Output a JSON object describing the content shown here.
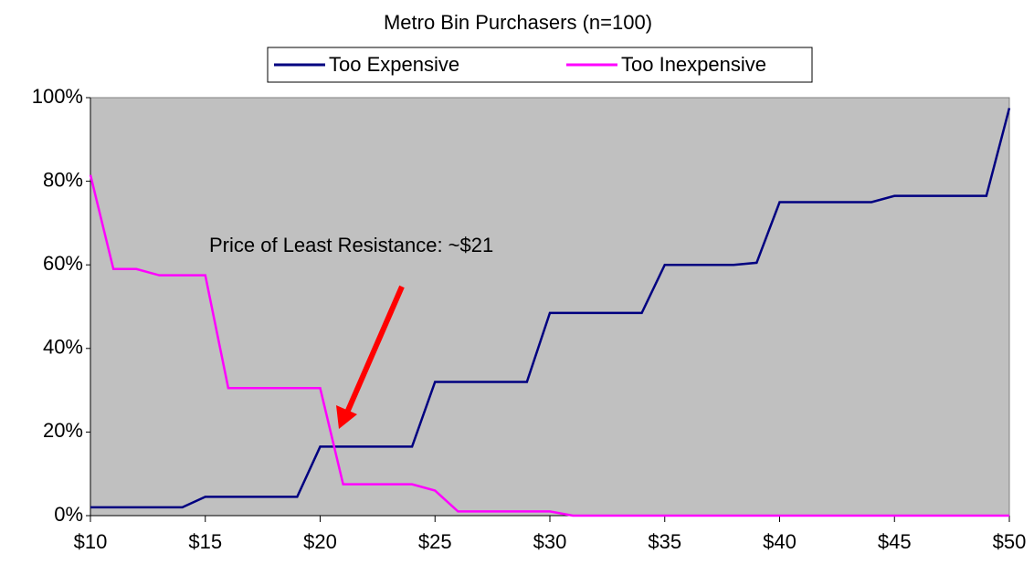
{
  "chart_data": {
    "type": "line",
    "title": "Metro Bin Purchasers (n=100)",
    "annotation": "Price of Least Resistance: ~$21",
    "x": [
      10,
      11,
      12,
      13,
      14,
      15,
      16,
      17,
      18,
      19,
      20,
      21,
      22,
      23,
      24,
      25,
      26,
      27,
      28,
      29,
      30,
      31,
      32,
      33,
      34,
      35,
      36,
      37,
      38,
      39,
      40,
      41,
      42,
      43,
      44,
      45,
      46,
      47,
      48,
      49,
      50
    ],
    "series": [
      {
        "name": "Too Expensive",
        "color": "#000080",
        "values": [
          2,
          2,
          2,
          2,
          2,
          4.5,
          4.5,
          4.5,
          4.5,
          4.5,
          16.5,
          16.5,
          16.5,
          16.5,
          16.5,
          32,
          32,
          32,
          32,
          32,
          48.5,
          48.5,
          48.5,
          48.5,
          48.5,
          60,
          60,
          60,
          60,
          60.5,
          75,
          75,
          75,
          75,
          75,
          76.5,
          76.5,
          76.5,
          76.5,
          76.5,
          97.5
        ]
      },
      {
        "name": "Too Inexpensive",
        "color": "#ff00ff",
        "values": [
          81.5,
          59,
          59,
          57.5,
          57.5,
          57.5,
          30.5,
          30.5,
          30.5,
          30.5,
          30.5,
          7.5,
          7.5,
          7.5,
          7.5,
          6,
          1,
          1,
          1,
          1,
          1,
          0,
          0,
          0,
          0,
          0,
          0,
          0,
          0,
          0,
          0,
          0,
          0,
          0,
          0,
          0,
          0,
          0,
          0,
          0,
          0
        ]
      }
    ],
    "xlim": [
      10,
      50
    ],
    "xticks": [
      {
        "value": 10,
        "label": "$10"
      },
      {
        "value": 15,
        "label": "$15"
      },
      {
        "value": 20,
        "label": "$20"
      },
      {
        "value": 25,
        "label": "$25"
      },
      {
        "value": 30,
        "label": "$30"
      },
      {
        "value": 35,
        "label": "$35"
      },
      {
        "value": 40,
        "label": "$40"
      },
      {
        "value": 45,
        "label": "$45"
      },
      {
        "value": 50,
        "label": "$50"
      }
    ],
    "ylim": [
      0,
      100
    ],
    "yticks": [
      {
        "value": 0,
        "label": "0%"
      },
      {
        "value": 20,
        "label": "20%"
      },
      {
        "value": 40,
        "label": "40%"
      },
      {
        "value": 60,
        "label": "60%"
      },
      {
        "value": 80,
        "label": "80%"
      },
      {
        "value": 100,
        "label": "100%"
      }
    ],
    "grid": false,
    "legend": "top",
    "background": "#c0c0c0"
  }
}
